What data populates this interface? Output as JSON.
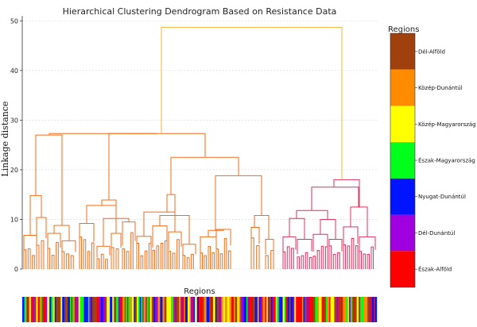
{
  "chart_data": {
    "type": "dendrogram",
    "title": "Hierarchical Clustering Dendrogram Based on Resistance Data",
    "ylabel": "Linkage distance",
    "ylim": [
      0,
      51
    ],
    "yticks": [
      0,
      10,
      20,
      30,
      40,
      50
    ],
    "grid": true,
    "root_height": 48.7,
    "clusters": [
      {
        "name": "orange",
        "color": "#f36c18",
        "merge_height": 27.3
      },
      {
        "name": "pink",
        "color": "#e0305f",
        "merge_height": 18.0
      }
    ],
    "link_color_above_threshold": "#f2b53a",
    "strip_label": "Regions",
    "legend": {
      "title": "Regions",
      "entries": [
        {
          "label": "Dél-Alföld",
          "color": "#a0410d"
        },
        {
          "label": "Közép-Dunántúl",
          "color": "#ff8c00"
        },
        {
          "label": "Közép-Magyarország",
          "color": "#ffff00"
        },
        {
          "label": "Észak-Magyarország",
          "color": "#00ff1a"
        },
        {
          "label": "Nyugat-Dunántúl",
          "color": "#0014ff"
        },
        {
          "label": "Dél-Dunántúl",
          "color": "#a000e0"
        },
        {
          "label": "Észak-Alföld",
          "color": "#ff0000"
        }
      ]
    }
  }
}
